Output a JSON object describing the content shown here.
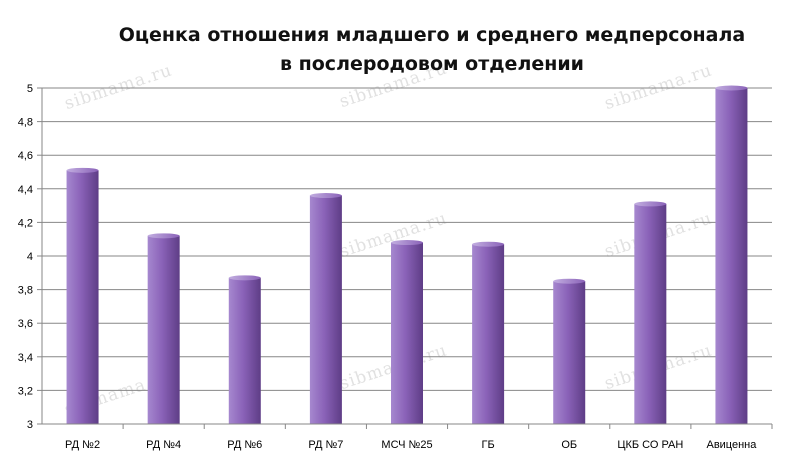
{
  "chart_data": {
    "type": "bar",
    "title": "Оценка отношения младшего и среднего медперсонала",
    "subtitle": "в послеродовом отделении",
    "xlabel": "",
    "ylabel": "",
    "categories": [
      "РД №2",
      "РД №4",
      "РД №6",
      "РД №7",
      "МСЧ №25",
      "ГБ",
      "ОБ",
      "ЦКБ СО РАН",
      "Авиценна"
    ],
    "values": [
      4.51,
      4.12,
      3.87,
      4.36,
      4.08,
      4.07,
      3.85,
      4.31,
      5.0
    ],
    "ylim": [
      3,
      5
    ],
    "yticks": [
      "3",
      "3,2",
      "3,4",
      "3,6",
      "3,8",
      "4",
      "4,2",
      "4,4",
      "4,6",
      "4,8",
      "5"
    ],
    "grid": true,
    "legend": "none",
    "bar_color": "#8a62b8",
    "bar_dark": "#5e3d86",
    "bar_light": "#a688cf"
  },
  "watermark": "sibmama.ru"
}
